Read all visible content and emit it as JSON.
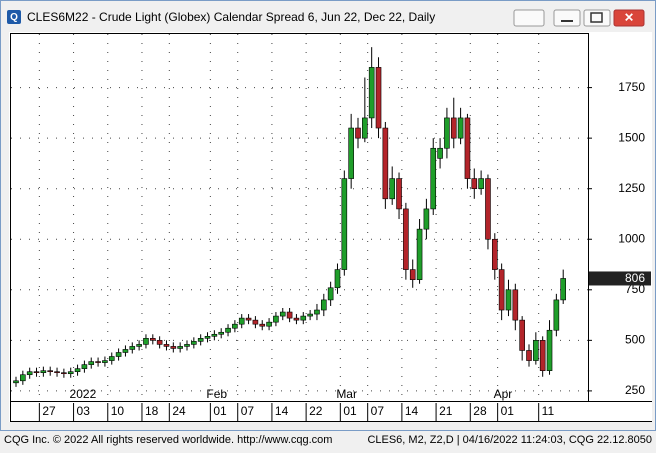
{
  "chart_data": {
    "type": "candlestick",
    "title": "CLES6M22 - Crude Light (Globex) Calendar Spread 6, Jun 22, Dec 22, Daily",
    "categories": [
      null,
      null,
      null,
      null,
      "27",
      null,
      null,
      null,
      null,
      "03",
      null,
      null,
      null,
      null,
      "10",
      null,
      null,
      null,
      null,
      "18",
      null,
      null,
      null,
      "24",
      null,
      null,
      null,
      null,
      null,
      "01",
      null,
      null,
      null,
      "07",
      null,
      null,
      null,
      null,
      "14",
      null,
      null,
      null,
      null,
      "22",
      null,
      null,
      null,
      null,
      "01",
      null,
      null,
      null,
      "07",
      null,
      null,
      null,
      null,
      "14",
      null,
      null,
      null,
      null,
      "21",
      null,
      null,
      null,
      null,
      "28",
      null,
      null,
      null,
      "01",
      null,
      null,
      null,
      null,
      null,
      "11",
      null,
      null,
      null
    ],
    "periods": [
      null,
      null,
      null,
      null,
      null,
      null,
      null,
      null,
      null,
      "2022",
      null,
      null,
      null,
      null,
      null,
      null,
      null,
      null,
      null,
      null,
      null,
      null,
      null,
      null,
      null,
      null,
      null,
      null,
      null,
      "Feb",
      null,
      null,
      null,
      null,
      null,
      null,
      null,
      null,
      null,
      null,
      null,
      null,
      null,
      null,
      null,
      null,
      null,
      null,
      "Mar",
      null,
      null,
      null,
      null,
      null,
      null,
      null,
      null,
      null,
      null,
      null,
      null,
      null,
      null,
      null,
      null,
      null,
      null,
      null,
      null,
      null,
      null,
      "Apr",
      null,
      null,
      null,
      null,
      null,
      null,
      null,
      null,
      null
    ],
    "opens": [
      290,
      300,
      330,
      345,
      340,
      350,
      345,
      340,
      335,
      345,
      360,
      380,
      395,
      390,
      400,
      420,
      440,
      455,
      470,
      480,
      510,
      500,
      480,
      470,
      460,
      470,
      480,
      495,
      510,
      520,
      530,
      540,
      560,
      580,
      610,
      600,
      580,
      570,
      590,
      620,
      640,
      610,
      600,
      620,
      630,
      650,
      700,
      760,
      850,
      1300,
      1550,
      1500,
      1600,
      1850,
      1550,
      1200,
      1300,
      1150,
      850,
      800,
      1050,
      1150,
      1400,
      1450,
      1600,
      1500,
      1600,
      1300,
      1250,
      1300,
      1000,
      850,
      650,
      750,
      600,
      450,
      400,
      500,
      350,
      550,
      700
    ],
    "highs": [
      320,
      350,
      365,
      365,
      370,
      370,
      365,
      360,
      365,
      380,
      400,
      415,
      415,
      420,
      440,
      460,
      475,
      490,
      500,
      530,
      530,
      520,
      500,
      490,
      490,
      500,
      515,
      530,
      540,
      550,
      560,
      580,
      600,
      630,
      630,
      620,
      600,
      610,
      640,
      660,
      660,
      630,
      640,
      650,
      680,
      730,
      790,
      880,
      1340,
      1620,
      1600,
      1800,
      1950,
      1900,
      1580,
      1360,
      1330,
      1180,
      900,
      1100,
      1200,
      1500,
      1500,
      1650,
      1700,
      1650,
      1620,
      1350,
      1340,
      1320,
      1030,
      880,
      800,
      780,
      620,
      480,
      540,
      520,
      600,
      730,
      850
    ],
    "lows": [
      270,
      280,
      310,
      320,
      320,
      325,
      320,
      315,
      315,
      325,
      340,
      360,
      370,
      370,
      380,
      400,
      420,
      435,
      450,
      460,
      480,
      460,
      450,
      440,
      440,
      450,
      460,
      475,
      490,
      500,
      510,
      520,
      540,
      560,
      580,
      560,
      550,
      550,
      570,
      600,
      590,
      580,
      580,
      600,
      600,
      620,
      670,
      730,
      820,
      1250,
      1450,
      1480,
      1550,
      1500,
      1150,
      1170,
      1100,
      800,
      760,
      780,
      1000,
      1120,
      1350,
      1400,
      1450,
      1470,
      1250,
      1200,
      1220,
      950,
      800,
      600,
      620,
      550,
      400,
      370,
      380,
      320,
      330,
      520,
      680
    ],
    "closes": [
      300,
      330,
      345,
      340,
      350,
      345,
      340,
      335,
      345,
      360,
      380,
      395,
      390,
      400,
      420,
      440,
      455,
      470,
      480,
      510,
      500,
      480,
      470,
      460,
      470,
      480,
      495,
      510,
      520,
      530,
      540,
      560,
      580,
      610,
      600,
      580,
      570,
      590,
      620,
      640,
      610,
      600,
      620,
      630,
      650,
      700,
      760,
      850,
      1300,
      1550,
      1500,
      1600,
      1850,
      1550,
      1200,
      1300,
      1150,
      850,
      800,
      1050,
      1150,
      1450,
      1450,
      1600,
      1500,
      1600,
      1300,
      1250,
      1300,
      1000,
      850,
      650,
      750,
      600,
      450,
      400,
      500,
      350,
      550,
      700,
      806
    ],
    "up_color": "#1f9e2a",
    "down_color": "#b3242a",
    "ylim": [
      205,
      2020
    ],
    "yticks": [
      250,
      500,
      750,
      1000,
      1250,
      1500,
      1750
    ],
    "grid": true,
    "last_price": 806
  },
  "footer": {
    "left": "CQG Inc. © 2022 All rights reserved worldwide. http://www.cqg.com",
    "right": "CLES6, M2, Z2,D | 04/16/2022 11:24:03, CQG 22.12.8050"
  }
}
